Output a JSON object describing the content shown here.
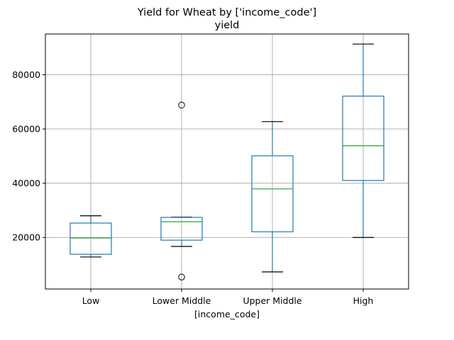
{
  "chart_data": {
    "type": "box",
    "title": "Yield for Wheat by ['income_code']",
    "subtitle": "yield",
    "xlabel": "[income_code]",
    "ylabel": "",
    "categories": [
      "Low",
      "Lower Middle",
      "Upper Middle",
      "High"
    ],
    "ylim": [
      1000,
      95000
    ],
    "yticks": [
      20000,
      40000,
      60000,
      80000
    ],
    "ytick_labels": [
      "20000",
      "40000",
      "60000",
      "80000"
    ],
    "grid": true,
    "boxes": [
      {
        "category": "Low",
        "whisker_low": 12800,
        "q1": 13800,
        "median": 19800,
        "q3": 25300,
        "whisker_high": 28000,
        "outliers": []
      },
      {
        "category": "Lower Middle",
        "whisker_low": 16700,
        "q1": 19000,
        "median": 25800,
        "q3": 27400,
        "whisker_high": 27500,
        "outliers": [
          68800,
          5400
        ]
      },
      {
        "category": "Upper Middle",
        "whisker_low": 7300,
        "q1": 22100,
        "median": 37900,
        "q3": 50100,
        "whisker_high": 62700,
        "outliers": []
      },
      {
        "category": "High",
        "whisker_low": 20000,
        "q1": 41000,
        "median": 53800,
        "q3": 72100,
        "whisker_high": 91300,
        "outliers": []
      }
    ],
    "colors": {
      "box": "#1f77b4",
      "median": "#2ca02c",
      "grid": "#b0b0b0",
      "cap": "#000000",
      "outlier": "#000000"
    }
  }
}
